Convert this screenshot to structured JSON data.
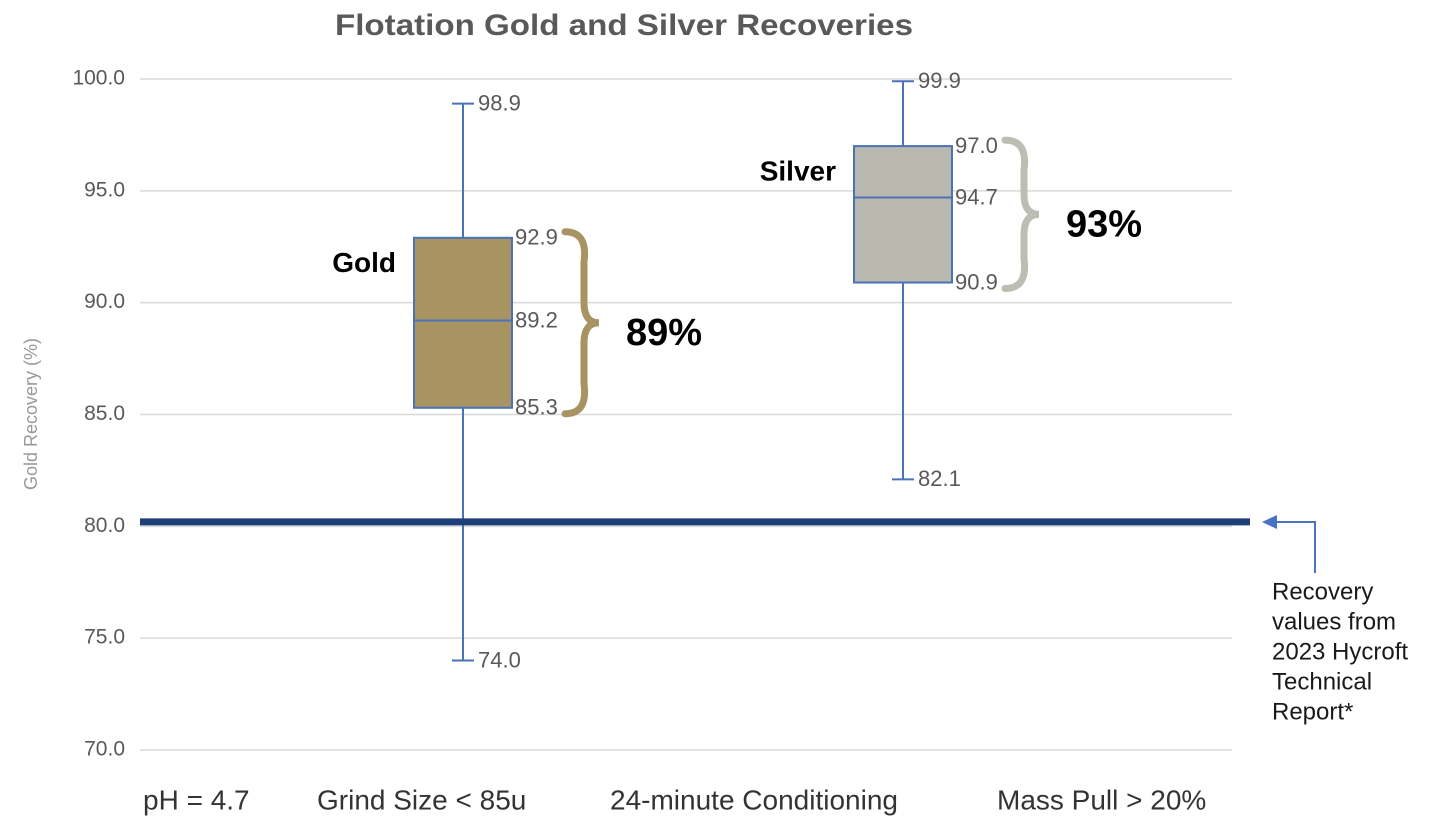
{
  "chart_data": {
    "type": "box",
    "title": "Flotation Gold and Silver Recoveries",
    "y_label": "Gold Recovery (%)",
    "ylim": [
      70,
      100
    ],
    "yticks": [
      {
        "value": 70,
        "label": "70.0"
      },
      {
        "value": 75,
        "label": "75.0"
      },
      {
        "value": 80,
        "label": "80.0"
      },
      {
        "value": 85,
        "label": "85.0"
      },
      {
        "value": 90,
        "label": "90.0"
      },
      {
        "value": 95,
        "label": "95.0"
      },
      {
        "value": 100,
        "label": "100.0"
      }
    ],
    "grid": true,
    "series": [
      {
        "name": "Gold",
        "color": "#a89463",
        "brace_color": "#a89463",
        "values": [
          74.0,
          85.3,
          89.2,
          92.9,
          98.9
        ],
        "value_labels": [
          "74.0",
          "85.3",
          "89.2",
          "92.9",
          "98.9"
        ],
        "recovery_label": "89%"
      },
      {
        "name": "Silver",
        "color": "#b9b8ae",
        "brace_color": "#bdbdb3",
        "values": [
          82.1,
          90.9,
          94.7,
          97.0,
          99.9
        ],
        "value_labels": [
          "82.1",
          "90.9",
          "94.7",
          "97.0",
          "99.9"
        ],
        "recovery_label": "93%"
      }
    ],
    "reference_line": {
      "value": 80.2,
      "color": "#1f3f7a",
      "label": [
        "Recovery",
        "values from",
        "2023 Hycroft",
        "Technical",
        "Report*"
      ]
    },
    "conditions": [
      "pH = 4.7",
      "Grind Size < 85u",
      "24-minute Conditioning",
      "Mass Pull > 20%"
    ]
  }
}
